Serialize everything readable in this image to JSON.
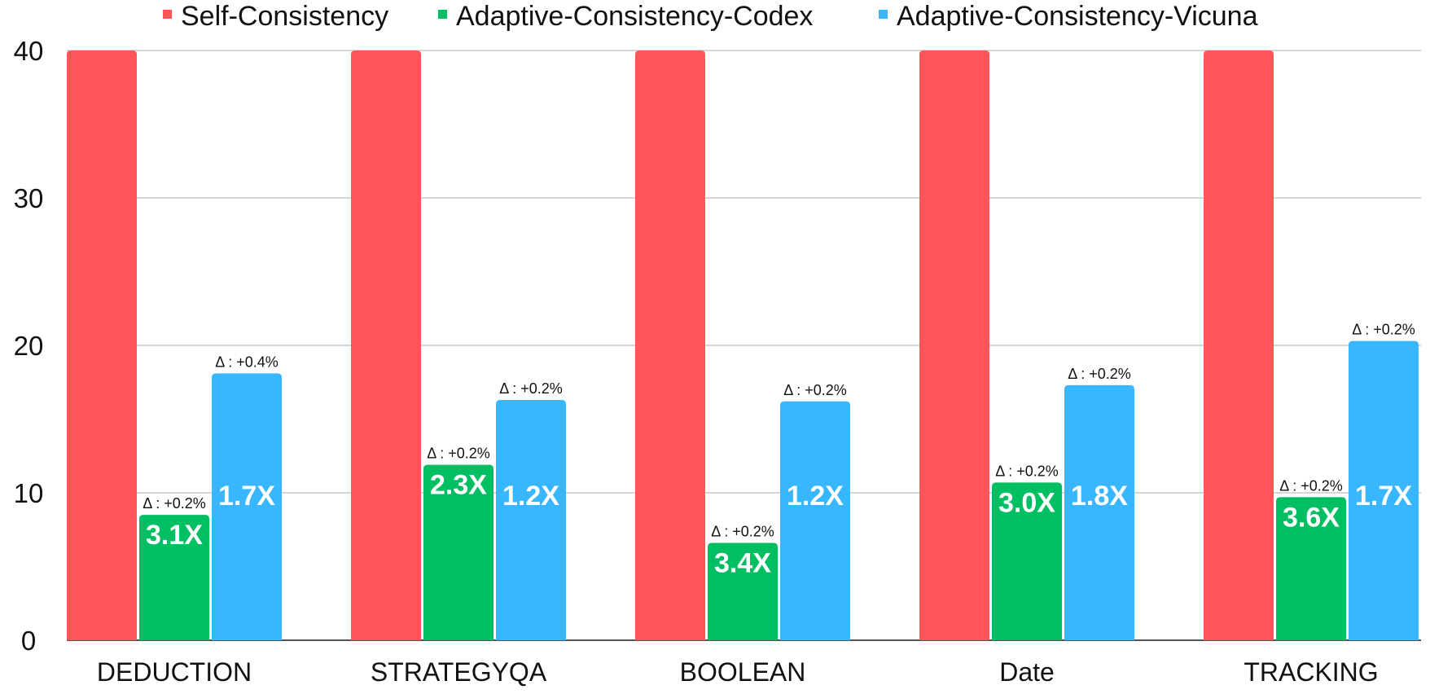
{
  "chart_data": {
    "type": "bar",
    "categories": [
      "DEDUCTION",
      "STRATEGYQA",
      "BOOLEAN",
      "Date",
      "TRACKING"
    ],
    "series": [
      {
        "name": "Self-Consistency",
        "color": "#FF5558",
        "values": [
          40,
          40,
          40,
          40,
          40
        ],
        "ratio_labels": [
          "",
          "",
          "",
          "",
          ""
        ],
        "delta_labels": [
          "",
          "",
          "",
          "",
          ""
        ]
      },
      {
        "name": "Adaptive-Consistency-Codex",
        "color": "#00BF63",
        "values": [
          8.5,
          11.9,
          6.6,
          10.7,
          9.7
        ],
        "ratio_labels": [
          "3.1X",
          "2.3X",
          "3.4X",
          "3.0X",
          "3.6X"
        ],
        "delta_labels": [
          "Δ : +0.2%",
          "Δ : +0.2%",
          "Δ : +0.2%",
          "Δ : +0.2%",
          "Δ : +0.2%"
        ]
      },
      {
        "name": "Adaptive-Consistency-Vicuna",
        "color": "#38B6FF",
        "values": [
          18.1,
          16.3,
          16.2,
          17.3,
          20.3
        ],
        "ratio_labels": [
          "1.7X",
          "1.2X",
          "1.2X",
          "1.8X",
          "1.7X"
        ],
        "delta_labels": [
          "Δ : +0.4%",
          "Δ : +0.2%",
          "Δ : +0.2%",
          "Δ : +0.2%",
          "Δ : +0.2%"
        ]
      }
    ],
    "yticks": [
      "0",
      "10",
      "20",
      "30",
      "40"
    ],
    "ylim": [
      0,
      40
    ],
    "grid": true,
    "legend_position": "top"
  }
}
